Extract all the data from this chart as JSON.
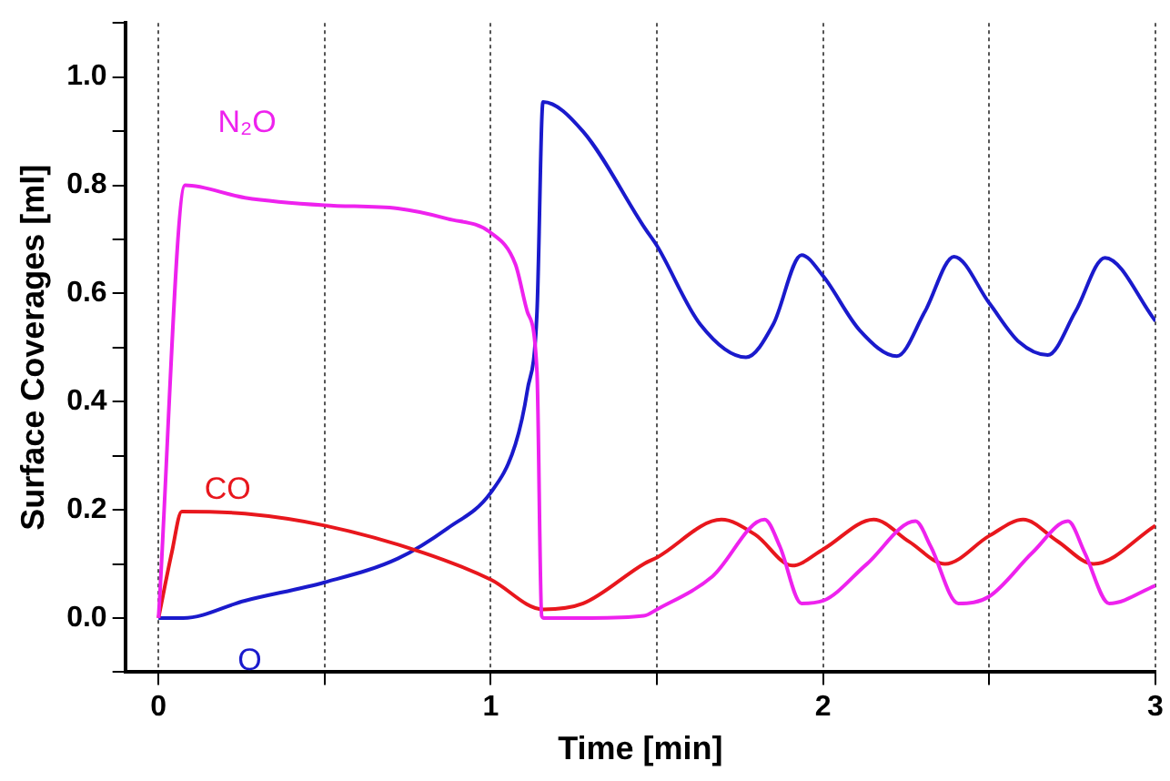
{
  "chart_data": {
    "type": "line",
    "xlabel": "Time [min]",
    "ylabel": "Surface Coverages [ml]",
    "xlim": [
      -0.1,
      3
    ],
    "ylim": [
      -0.1,
      1.1
    ],
    "xticks": [
      0,
      {
        "value": 0.5,
        "label": null
      },
      1,
      {
        "value": 1.5,
        "label": null
      },
      2,
      {
        "value": 2.5,
        "label": null
      },
      3
    ],
    "yticks": [
      {
        "value": -0.1,
        "label": null
      },
      {
        "value": 0,
        "label": "0.0"
      },
      {
        "value": 0.1,
        "label": null
      },
      {
        "value": 0.2,
        "label": "0.2"
      },
      {
        "value": 0.3,
        "label": null
      },
      {
        "value": 0.4,
        "label": "0.4"
      },
      {
        "value": 0.5,
        "label": null
      },
      {
        "value": 0.6,
        "label": "0.6"
      },
      {
        "value": 0.7,
        "label": null
      },
      {
        "value": 0.8,
        "label": "0.8"
      },
      {
        "value": 0.9,
        "label": null
      },
      {
        "value": 1,
        "label": "1.0"
      },
      {
        "value": 1.1,
        "label": null
      }
    ],
    "grid": "x",
    "legend": false,
    "marker": "none",
    "line_style": "solid",
    "series": [
      {
        "name": "N₂O",
        "color": "#ee22ee",
        "x": [
          0,
          0.08,
          0.26,
          0.5,
          0.72,
          0.87,
          1.0,
          1.074,
          1.11,
          1.139,
          1.153,
          1.16,
          1.3,
          1.46,
          1.5,
          1.667,
          1.824,
          1.87,
          1.935,
          2.0,
          2.13,
          2.278,
          2.324,
          2.407,
          2.5,
          2.63,
          2.737,
          2.787,
          2.861,
          3.0
        ],
        "values": [
          0,
          0.8,
          0.777,
          0.763,
          0.757,
          0.738,
          0.712,
          0.654,
          0.566,
          0.454,
          0.004,
          0,
          0,
          0.004,
          0.016,
          0.077,
          0.182,
          0.132,
          0.027,
          0.032,
          0.099,
          0.179,
          0.132,
          0.027,
          0.04,
          0.121,
          0.179,
          0.121,
          0.027,
          0.06
        ]
      },
      {
        "name": "CO",
        "color": "#e8171d",
        "x": [
          0,
          0.04,
          0.07,
          0.26,
          0.5,
          0.796,
          1.0,
          1.157,
          1.278,
          1.463,
          1.5,
          1.694,
          1.796,
          1.907,
          2.0,
          2.152,
          2.259,
          2.367,
          2.5,
          2.602,
          2.703,
          2.814,
          3.0
        ],
        "values": [
          0,
          0.121,
          0.197,
          0.193,
          0.171,
          0.121,
          0.071,
          0.016,
          0.027,
          0.101,
          0.112,
          0.182,
          0.154,
          0.097,
          0.127,
          0.182,
          0.141,
          0.1,
          0.152,
          0.182,
          0.143,
          0.1,
          0.171
        ]
      },
      {
        "name": "O",
        "color": "#1a1acc",
        "x": [
          0,
          0.074,
          0.26,
          0.5,
          0.72,
          0.87,
          1.0,
          1.074,
          1.11,
          1.139,
          1.157,
          1.278,
          1.463,
          1.5,
          1.63,
          1.768,
          1.85,
          1.935,
          2.0,
          2.11,
          2.222,
          2.306,
          2.394,
          2.5,
          2.59,
          2.676,
          2.759,
          2.848,
          3.0
        ],
        "values": [
          0,
          0,
          0.032,
          0.066,
          0.11,
          0.166,
          0.232,
          0.321,
          0.421,
          0.566,
          0.954,
          0.899,
          0.721,
          0.688,
          0.543,
          0.482,
          0.543,
          0.671,
          0.632,
          0.532,
          0.484,
          0.566,
          0.668,
          0.582,
          0.51,
          0.486,
          0.566,
          0.666,
          0.549
        ]
      }
    ]
  }
}
